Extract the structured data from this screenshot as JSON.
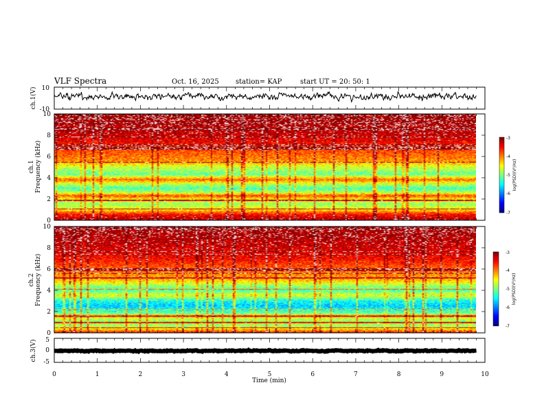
{
  "header": {
    "title": "VLF Spectra",
    "date": "Oct. 16, 2025",
    "station": "station= KAP",
    "start": "start  UT =   20: 50: 1"
  },
  "colors": {
    "frame": "#000000",
    "background": "#ffffff"
  },
  "chart_data": [
    {
      "type": "line",
      "name": "ch1-waveform",
      "ylabel": "ch.1(V)",
      "ylim": [
        -10,
        10
      ],
      "yticklabels": [
        "10",
        "-10"
      ],
      "xlim": [
        0,
        10
      ],
      "x_end": 9.8,
      "series_color": "#000000",
      "mean": 1.5,
      "amplitude": 5
    },
    {
      "type": "heatmap",
      "name": "ch1-spectrogram",
      "ylabel_line1": "ch.1",
      "ylabel_line2": "Frequency (kHz)",
      "ylim": [
        0,
        10
      ],
      "yticks": [
        0,
        2,
        4,
        6,
        8,
        10
      ],
      "yticklabels": [
        "0",
        "2",
        "4",
        "6",
        "8",
        "10"
      ],
      "xlim": [
        0,
        10
      ],
      "x_end": 9.8,
      "colorbar": {
        "label": "log(PSD)(V²/Hz)",
        "range": [
          -7,
          -3
        ],
        "ticklabels": [
          "-3",
          "-4",
          "-5",
          "-6",
          "-7"
        ]
      },
      "band_profile": [
        {
          "f": 0.0,
          "v": -3.2
        },
        {
          "f": 0.5,
          "v": -3.5
        },
        {
          "f": 1.0,
          "v": -4.5
        },
        {
          "f": 1.5,
          "v": -4.9
        },
        {
          "f": 2.0,
          "v": -4.4
        },
        {
          "f": 2.3,
          "v": -3.8
        },
        {
          "f": 2.6,
          "v": -4.8
        },
        {
          "f": 3.0,
          "v": -5.2
        },
        {
          "f": 3.5,
          "v": -4.6
        },
        {
          "f": 3.8,
          "v": -3.9
        },
        {
          "f": 4.3,
          "v": -5.1
        },
        {
          "f": 5.0,
          "v": -4.7
        },
        {
          "f": 5.5,
          "v": -4.1
        },
        {
          "f": 6.5,
          "v": -3.8
        },
        {
          "f": 7.5,
          "v": -3.4
        },
        {
          "f": 8.5,
          "v": -3.15
        },
        {
          "f": 10.0,
          "v": -3.05
        }
      ]
    },
    {
      "type": "heatmap",
      "name": "ch2-spectrogram",
      "ylabel_line1": "ch.2",
      "ylabel_line2": "Frequency (kHz)",
      "ylim": [
        0,
        10
      ],
      "yticks": [
        0,
        2,
        4,
        6,
        8,
        10
      ],
      "yticklabels": [
        "0",
        "2",
        "4",
        "6",
        "8",
        "10"
      ],
      "xlim": [
        0,
        10
      ],
      "x_end": 9.8,
      "colorbar": {
        "label": "log(PSD)(V²/Hz)",
        "range": [
          -7,
          -3
        ],
        "ticklabels": [
          "-3",
          "-4",
          "-5",
          "-6",
          "-7"
        ]
      },
      "band_profile": [
        {
          "f": 0.0,
          "v": -3.6
        },
        {
          "f": 0.5,
          "v": -4.8
        },
        {
          "f": 1.0,
          "v": -4.9
        },
        {
          "f": 1.5,
          "v": -4.6
        },
        {
          "f": 2.0,
          "v": -5.3
        },
        {
          "f": 2.5,
          "v": -5.7
        },
        {
          "f": 3.0,
          "v": -5.4
        },
        {
          "f": 3.5,
          "v": -4.6
        },
        {
          "f": 4.0,
          "v": -5.2
        },
        {
          "f": 4.5,
          "v": -4.8
        },
        {
          "f": 5.0,
          "v": -4.2
        },
        {
          "f": 6.0,
          "v": -3.9
        },
        {
          "f": 7.0,
          "v": -3.5
        },
        {
          "f": 8.0,
          "v": -3.3
        },
        {
          "f": 9.0,
          "v": -3.15
        },
        {
          "f": 10.0,
          "v": -3.05
        }
      ]
    },
    {
      "type": "line",
      "name": "ch3-waveform",
      "ylabel": "ch.3(V)",
      "ylim": [
        -5,
        5
      ],
      "yticks": [
        5,
        0,
        -5
      ],
      "yticklabels": [
        "5",
        "0",
        "-5"
      ],
      "xlim": [
        0,
        10
      ],
      "x_end": 9.8,
      "series_color": "#000000",
      "mean": -0.2,
      "amplitude": 0.35
    }
  ],
  "xaxis": {
    "label": "Time (min)",
    "ticks": [
      0,
      1,
      2,
      3,
      4,
      5,
      6,
      7,
      8,
      9,
      10
    ],
    "ticklabels": [
      "0",
      "1",
      "2",
      "3",
      "4",
      "5",
      "6",
      "7",
      "8",
      "9",
      "10"
    ]
  }
}
